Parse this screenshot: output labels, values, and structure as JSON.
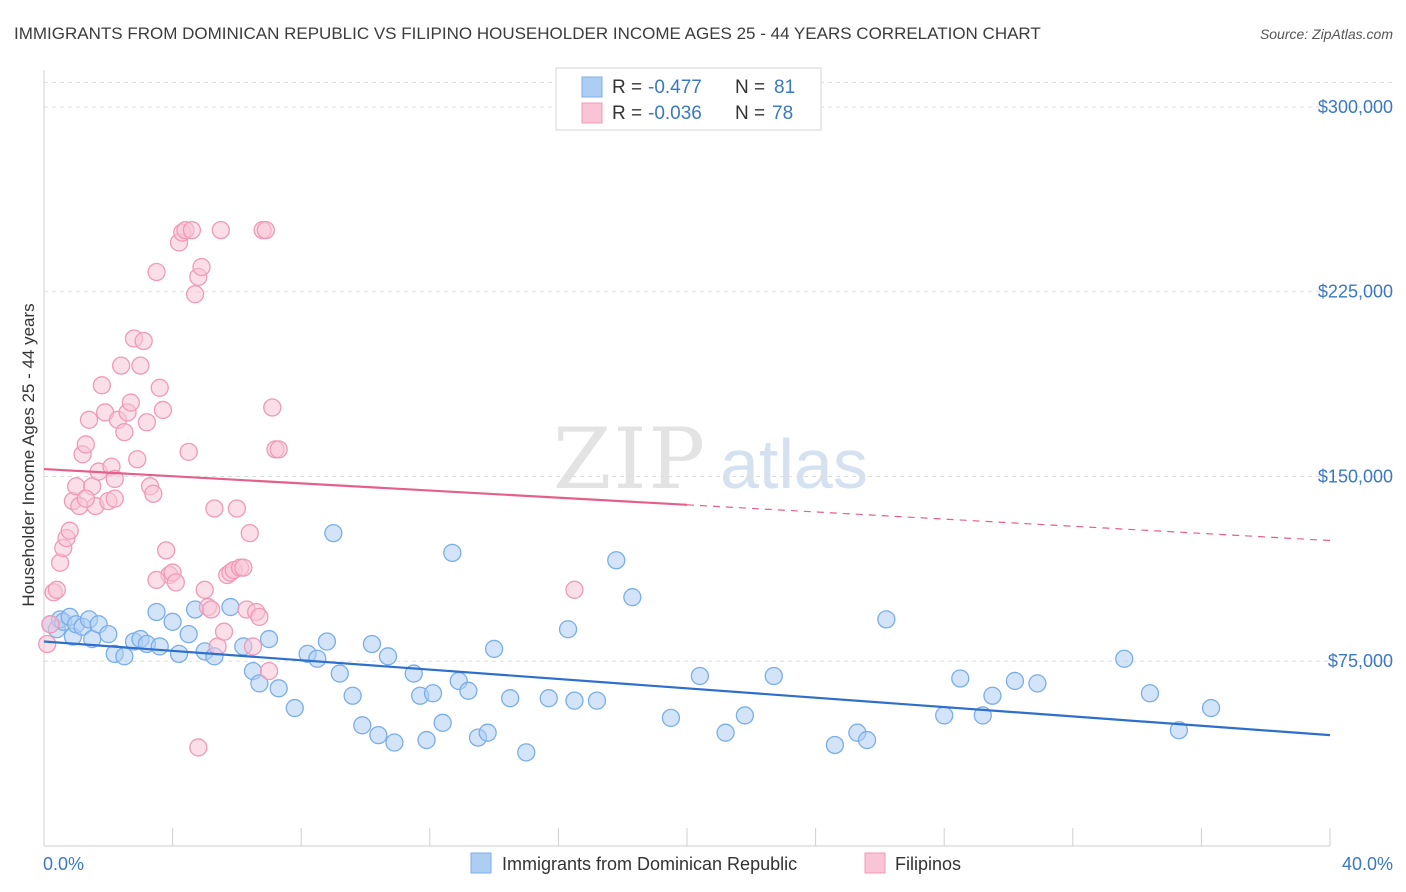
{
  "chart_data": {
    "type": "scatter",
    "title": "IMMIGRANTS FROM DOMINICAN REPUBLIC VS FILIPINO HOUSEHOLDER INCOME AGES 25 - 44 YEARS CORRELATION CHART",
    "source": "Source: ZipAtlas.com",
    "watermark": {
      "zip": "ZIP",
      "atlas": "atlas"
    },
    "xlabel": "",
    "ylabel": "Householder Income Ages 25 - 44 years",
    "xlim": [
      0,
      40
    ],
    "ylim": [
      0,
      315000
    ],
    "x_tick_labels": {
      "left": "0.0%",
      "right": "40.0%"
    },
    "y_ticks": [
      {
        "value": 75000,
        "label": "$75,000"
      },
      {
        "value": 150000,
        "label": "$150,000"
      },
      {
        "value": 225000,
        "label": "$225,000"
      },
      {
        "value": 300000,
        "label": "$300,000"
      }
    ],
    "grid": true,
    "legend_top": {
      "placement": "top-center",
      "rows": [
        {
          "r_label": "R =",
          "r_value": "-0.477",
          "n_label": "N =",
          "n_value": "81",
          "color": "#7aaee8"
        },
        {
          "r_label": "R =",
          "r_value": "-0.036",
          "n_label": "N =",
          "n_value": "78",
          "color": "#f099b8"
        }
      ]
    },
    "series": [
      {
        "name": "Immigrants from Dominican Republic",
        "color": "#7aaee8",
        "fill": "#aecdf3",
        "line_color": "#2e6fcc",
        "trend": {
          "x0": 0,
          "y0": 83000,
          "x1": 40,
          "y1": 45000,
          "dashed_from": null
        },
        "points": [
          [
            0.2,
            90000
          ],
          [
            0.4,
            88000
          ],
          [
            0.5,
            92000
          ],
          [
            0.6,
            91000
          ],
          [
            0.8,
            93000
          ],
          [
            0.9,
            85000
          ],
          [
            1.0,
            90000
          ],
          [
            1.2,
            89000
          ],
          [
            1.4,
            92000
          ],
          [
            1.5,
            84000
          ],
          [
            1.7,
            90000
          ],
          [
            2.0,
            86000
          ],
          [
            2.2,
            78000
          ],
          [
            2.5,
            77000
          ],
          [
            2.8,
            83000
          ],
          [
            3.0,
            84000
          ],
          [
            3.2,
            82000
          ],
          [
            3.5,
            95000
          ],
          [
            3.6,
            81000
          ],
          [
            4.0,
            91000
          ],
          [
            4.2,
            78000
          ],
          [
            4.5,
            86000
          ],
          [
            4.7,
            96000
          ],
          [
            5.0,
            79000
          ],
          [
            5.3,
            77000
          ],
          [
            5.8,
            97000
          ],
          [
            6.2,
            81000
          ],
          [
            6.5,
            71000
          ],
          [
            6.7,
            66000
          ],
          [
            7.0,
            84000
          ],
          [
            7.3,
            64000
          ],
          [
            7.8,
            56000
          ],
          [
            8.2,
            78000
          ],
          [
            8.5,
            76000
          ],
          [
            8.8,
            83000
          ],
          [
            9.0,
            127000
          ],
          [
            9.2,
            70000
          ],
          [
            9.6,
            61000
          ],
          [
            9.9,
            49000
          ],
          [
            10.2,
            82000
          ],
          [
            10.4,
            45000
          ],
          [
            10.7,
            77000
          ],
          [
            10.9,
            42000
          ],
          [
            11.5,
            70000
          ],
          [
            11.7,
            61000
          ],
          [
            11.9,
            43000
          ],
          [
            12.1,
            62000
          ],
          [
            12.4,
            50000
          ],
          [
            12.7,
            119000
          ],
          [
            12.9,
            67000
          ],
          [
            13.2,
            63000
          ],
          [
            13.5,
            44000
          ],
          [
            13.8,
            46000
          ],
          [
            14.0,
            80000
          ],
          [
            14.5,
            60000
          ],
          [
            15.0,
            38000
          ],
          [
            15.7,
            60000
          ],
          [
            16.3,
            88000
          ],
          [
            16.5,
            59000
          ],
          [
            17.2,
            59000
          ],
          [
            17.8,
            116000
          ],
          [
            18.3,
            101000
          ],
          [
            19.5,
            52000
          ],
          [
            20.4,
            69000
          ],
          [
            21.2,
            46000
          ],
          [
            21.8,
            53000
          ],
          [
            22.7,
            69000
          ],
          [
            24.6,
            41000
          ],
          [
            25.3,
            46000
          ],
          [
            25.6,
            43000
          ],
          [
            26.2,
            92000
          ],
          [
            28.0,
            53000
          ],
          [
            28.5,
            68000
          ],
          [
            29.2,
            53000
          ],
          [
            29.5,
            61000
          ],
          [
            30.2,
            67000
          ],
          [
            30.9,
            66000
          ],
          [
            33.6,
            76000
          ],
          [
            34.4,
            62000
          ],
          [
            35.3,
            47000
          ],
          [
            36.3,
            56000
          ]
        ]
      },
      {
        "name": "Filipinos",
        "color": "#f099b8",
        "fill": "#f8c4d6",
        "line_color": "#e4608a",
        "trend": {
          "x0": 0,
          "y0": 153000,
          "x1": 40,
          "y1": 124000,
          "dashed_from": 20
        },
        "points": [
          [
            0.1,
            82000
          ],
          [
            0.2,
            90000
          ],
          [
            0.3,
            103000
          ],
          [
            0.4,
            104000
          ],
          [
            0.5,
            115000
          ],
          [
            0.6,
            121000
          ],
          [
            0.7,
            125000
          ],
          [
            0.8,
            128000
          ],
          [
            0.9,
            140000
          ],
          [
            1.0,
            146000
          ],
          [
            1.1,
            138000
          ],
          [
            1.2,
            159000
          ],
          [
            1.3,
            163000
          ],
          [
            1.4,
            173000
          ],
          [
            1.5,
            146000
          ],
          [
            1.6,
            138000
          ],
          [
            1.7,
            152000
          ],
          [
            1.8,
            187000
          ],
          [
            1.9,
            176000
          ],
          [
            2.0,
            140000
          ],
          [
            2.1,
            154000
          ],
          [
            2.2,
            149000
          ],
          [
            2.3,
            173000
          ],
          [
            2.4,
            195000
          ],
          [
            2.5,
            168000
          ],
          [
            2.6,
            176000
          ],
          [
            2.7,
            180000
          ],
          [
            2.8,
            206000
          ],
          [
            2.9,
            157000
          ],
          [
            3.0,
            195000
          ],
          [
            3.1,
            205000
          ],
          [
            3.2,
            172000
          ],
          [
            3.3,
            146000
          ],
          [
            3.4,
            143000
          ],
          [
            3.5,
            233000
          ],
          [
            3.6,
            186000
          ],
          [
            3.7,
            177000
          ],
          [
            3.8,
            120000
          ],
          [
            3.9,
            110000
          ],
          [
            4.0,
            111000
          ],
          [
            4.1,
            107000
          ],
          [
            4.2,
            245000
          ],
          [
            4.3,
            249000
          ],
          [
            4.4,
            250000
          ],
          [
            4.5,
            160000
          ],
          [
            4.6,
            250000
          ],
          [
            4.7,
            224000
          ],
          [
            4.8,
            231000
          ],
          [
            4.9,
            235000
          ],
          [
            5.0,
            104000
          ],
          [
            5.1,
            97000
          ],
          [
            5.2,
            96000
          ],
          [
            5.3,
            137000
          ],
          [
            5.4,
            81000
          ],
          [
            5.5,
            250000
          ],
          [
            5.6,
            87000
          ],
          [
            5.7,
            110000
          ],
          [
            5.8,
            111000
          ],
          [
            5.9,
            112000
          ],
          [
            6.0,
            137000
          ],
          [
            6.1,
            113000
          ],
          [
            6.2,
            113000
          ],
          [
            6.3,
            96000
          ],
          [
            6.4,
            127000
          ],
          [
            6.5,
            81000
          ],
          [
            6.6,
            95000
          ],
          [
            6.7,
            93000
          ],
          [
            6.8,
            250000
          ],
          [
            6.9,
            250000
          ],
          [
            7.0,
            71000
          ],
          [
            7.1,
            178000
          ],
          [
            7.2,
            161000
          ],
          [
            7.3,
            161000
          ],
          [
            3.5,
            108000
          ],
          [
            2.2,
            141000
          ],
          [
            1.3,
            141000
          ],
          [
            4.8,
            40000
          ],
          [
            16.5,
            104000
          ]
        ]
      }
    ]
  }
}
